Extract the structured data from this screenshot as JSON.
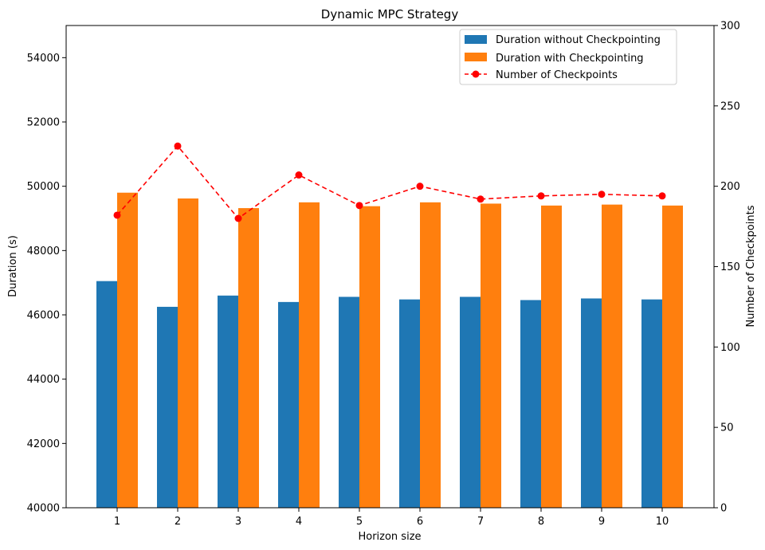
{
  "chart_data": {
    "type": "bar",
    "title": "Dynamic MPC Strategy",
    "xlabel": "Horizon size",
    "ylabel": "Duration (s)",
    "y2label": "Number of Checkpoints",
    "categories": [
      "1",
      "2",
      "3",
      "4",
      "5",
      "6",
      "7",
      "8",
      "9",
      "10"
    ],
    "ylim": [
      40000,
      55000
    ],
    "y2lim": [
      0,
      300
    ],
    "yticks": [
      40000,
      42000,
      44000,
      46000,
      48000,
      50000,
      52000,
      54000
    ],
    "y2ticks": [
      0,
      50,
      100,
      150,
      200,
      250,
      300
    ],
    "legend_position": "top-right",
    "grid": false,
    "series": [
      {
        "name": "Duration without Checkpointing",
        "type": "bar",
        "axis": "left",
        "color": "#1f77b4",
        "values": [
          47050,
          46250,
          46600,
          46400,
          46560,
          46480,
          46560,
          46460,
          46510,
          46480
        ]
      },
      {
        "name": "Duration with Checkpointing",
        "type": "bar",
        "axis": "left",
        "color": "#ff7f0e",
        "values": [
          49800,
          49620,
          49320,
          49500,
          49380,
          49500,
          49460,
          49400,
          49430,
          49400
        ]
      },
      {
        "name": "Number of Checkpoints",
        "type": "line",
        "axis": "right",
        "color": "#ff0000",
        "style": "dashed",
        "marker": "circle",
        "values": [
          182,
          225,
          180,
          207,
          188,
          200,
          192,
          194,
          195,
          194
        ]
      }
    ]
  }
}
